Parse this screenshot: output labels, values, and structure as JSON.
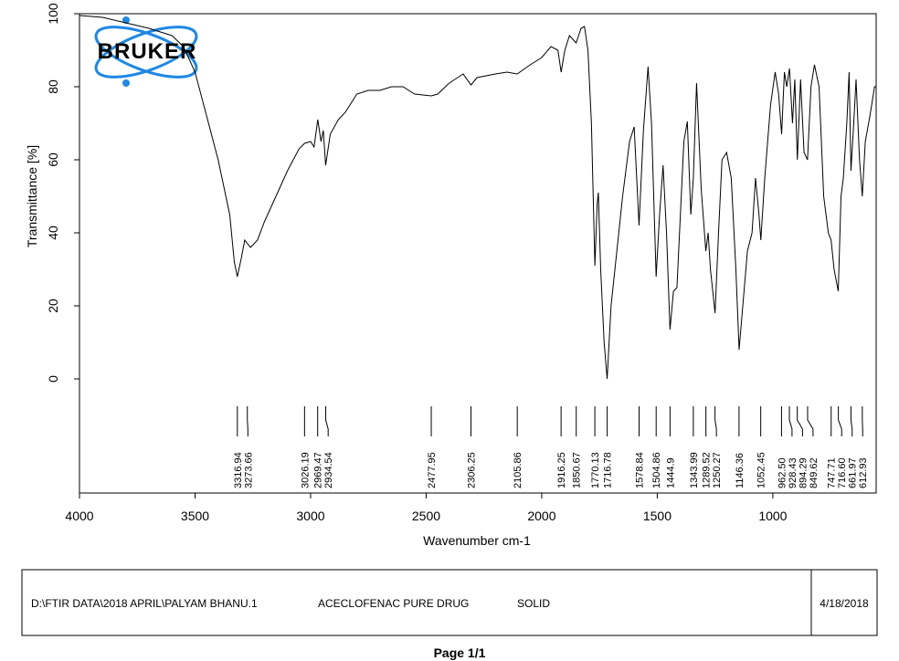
{
  "logo": {
    "text": "BRUKER"
  },
  "chart_data": {
    "type": "line",
    "xlabel": "Wavenumber cm-1",
    "ylabel": "Transmittance [%]",
    "xlim": [
      4000,
      553
    ],
    "ylim": [
      -31.25,
      100
    ],
    "xticks": [
      4000,
      3500,
      3000,
      2500,
      2000,
      1500,
      1000
    ],
    "yticks": [
      0,
      20,
      40,
      60,
      80,
      100
    ],
    "color": "#000000",
    "x": [
      4000,
      3900,
      3800,
      3700,
      3600,
      3550,
      3500,
      3450,
      3400,
      3350,
      3330,
      3317,
      3300,
      3285,
      3273,
      3260,
      3230,
      3200,
      3150,
      3100,
      3050,
      3026,
      3000,
      2985,
      2969,
      2955,
      2945,
      2935,
      2915,
      2880,
      2850,
      2800,
      2750,
      2700,
      2650,
      2600,
      2550,
      2478,
      2450,
      2400,
      2340,
      2306,
      2280,
      2200,
      2150,
      2106,
      2050,
      2000,
      1960,
      1930,
      1916,
      1900,
      1880,
      1851,
      1830,
      1815,
      1800,
      1785,
      1770,
      1760,
      1755,
      1745,
      1730,
      1717,
      1700,
      1650,
      1620,
      1600,
      1579,
      1560,
      1540,
      1525,
      1505,
      1490,
      1475,
      1460,
      1445,
      1430,
      1415,
      1400,
      1385,
      1370,
      1355,
      1344,
      1330,
      1310,
      1290,
      1280,
      1270,
      1250,
      1235,
      1220,
      1200,
      1180,
      1160,
      1146,
      1130,
      1110,
      1090,
      1075,
      1060,
      1052,
      1035,
      1010,
      990,
      975,
      962,
      950,
      940,
      928,
      915,
      905,
      894,
      880,
      865,
      850,
      835,
      820,
      800,
      780,
      760,
      748,
      735,
      717,
      705,
      695,
      680,
      670,
      662,
      650,
      640,
      625,
      613,
      600,
      580,
      560,
      555
    ],
    "values": [
      99.5,
      99,
      97.5,
      96,
      94,
      91,
      84,
      72,
      60,
      45,
      32,
      28,
      33,
      38,
      37,
      36,
      38,
      43,
      50,
      57,
      63,
      64.5,
      65,
      63.5,
      71,
      65,
      68,
      58.5,
      67,
      71,
      73,
      78,
      79,
      79,
      80,
      80,
      78,
      77.5,
      78,
      81,
      83.5,
      80.5,
      82.5,
      83.5,
      84,
      83.5,
      86,
      88,
      91,
      90,
      84,
      90,
      94,
      92,
      96,
      96.5,
      90,
      70,
      31,
      48,
      51,
      30,
      10,
      0,
      20,
      50,
      65,
      69,
      42,
      68,
      85.5,
      70,
      28,
      45,
      58.5,
      40,
      13.5,
      24,
      25,
      45,
      65,
      70.5,
      45,
      55,
      81,
      52,
      35,
      40,
      30,
      18,
      40,
      60,
      62,
      55,
      30,
      8,
      20,
      35,
      40,
      55,
      45,
      38,
      55,
      75,
      84,
      78,
      67,
      84,
      80,
      85,
      70,
      82,
      60,
      82,
      62,
      60,
      80,
      86,
      80,
      50,
      40,
      38,
      30,
      24,
      50,
      55,
      70,
      84,
      57,
      70,
      82,
      60,
      50,
      65,
      72,
      80,
      80
    ],
    "peaks": [
      3316.94,
      3273.66,
      3026.19,
      2969.47,
      2934.54,
      2477.95,
      2306.25,
      2105.86,
      1916.25,
      1850.67,
      1770.13,
      1716.78,
      1578.84,
      1504.86,
      1444.9,
      1343.99,
      1289.52,
      1250.27,
      1146.36,
      1052.45,
      {
        "value": 962.5,
        "label": "962.50"
      },
      928.43,
      894.29,
      849.62,
      747.71,
      {
        "value": 716.6,
        "label": "716.60"
      },
      661.97,
      612.93
    ]
  },
  "footer": {
    "path": "D:\\FTIR DATA\\2018 APRIL\\PALYAM BHANU.1",
    "sample": "ACECLOFENAC PURE DRUG",
    "state": "SOLID",
    "date": "4/18/2018"
  },
  "page_label": "Page 1/1"
}
